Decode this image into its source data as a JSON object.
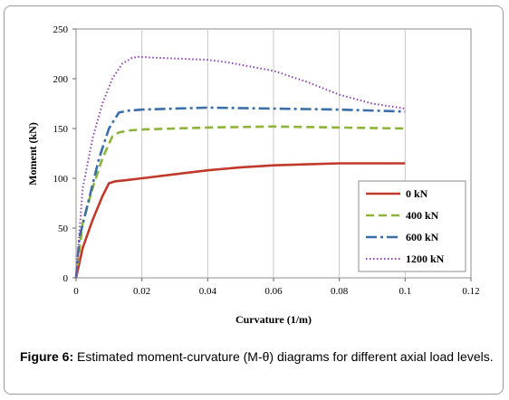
{
  "chart_data": {
    "type": "line",
    "title": "",
    "xlabel": "Curvature (1/m)",
    "ylabel": "Moment (kN)",
    "xlim": [
      0,
      0.12
    ],
    "ylim": [
      0,
      250
    ],
    "xticks": [
      0,
      0.02,
      0.04,
      0.06,
      0.08,
      0.1,
      0.12
    ],
    "xtick_labels": [
      "0",
      "0.02",
      "0.04",
      "0.06",
      "0.08",
      "0.1",
      "0.12"
    ],
    "yticks": [
      0,
      50,
      100,
      150,
      200,
      250
    ],
    "ytick_labels": [
      "0",
      "50",
      "100",
      "150",
      "200",
      "250"
    ],
    "grid": "vertical",
    "legend_position": "bottom-right",
    "series": [
      {
        "name": "0 kN",
        "color": "#c0392b",
        "style": "solid",
        "x": [
          0,
          0.002,
          0.005,
          0.008,
          0.01,
          0.012,
          0.015,
          0.02,
          0.03,
          0.04,
          0.05,
          0.06,
          0.07,
          0.08,
          0.09,
          0.1
        ],
        "y": [
          0,
          30,
          58,
          82,
          95,
          97,
          98,
          100,
          104,
          108,
          111,
          113,
          114,
          115,
          115,
          115
        ]
      },
      {
        "name": "400 kN",
        "color": "#8db33a",
        "style": "dashed",
        "x": [
          0,
          0.002,
          0.005,
          0.008,
          0.011,
          0.013,
          0.016,
          0.02,
          0.03,
          0.04,
          0.06,
          0.08,
          0.1
        ],
        "y": [
          0,
          55,
          90,
          120,
          142,
          146,
          148,
          149,
          150,
          151,
          152,
          151,
          150
        ]
      },
      {
        "name": "600 kN",
        "color": "#3a6fa8",
        "style": "dashdot",
        "x": [
          0,
          0.001,
          0.004,
          0.007,
          0.01,
          0.013,
          0.016,
          0.02,
          0.03,
          0.04,
          0.06,
          0.08,
          0.1
        ],
        "y": [
          0,
          40,
          80,
          120,
          150,
          166,
          168,
          169,
          170,
          171,
          170,
          169,
          167
        ]
      },
      {
        "name": "1200 kN",
        "color": "#8e44ad",
        "style": "dotted",
        "x": [
          0,
          0.002,
          0.005,
          0.008,
          0.011,
          0.014,
          0.017,
          0.019,
          0.025,
          0.04,
          0.045,
          0.06,
          0.07,
          0.08,
          0.09,
          0.1
        ],
        "y": [
          0,
          90,
          140,
          175,
          200,
          215,
          221,
          222,
          221,
          219,
          217,
          208,
          197,
          184,
          175,
          170
        ]
      }
    ]
  },
  "caption": {
    "label": "Figure 6:",
    "text": " Estimated moment-curvature (M-θ) diagrams for different axial load levels."
  }
}
